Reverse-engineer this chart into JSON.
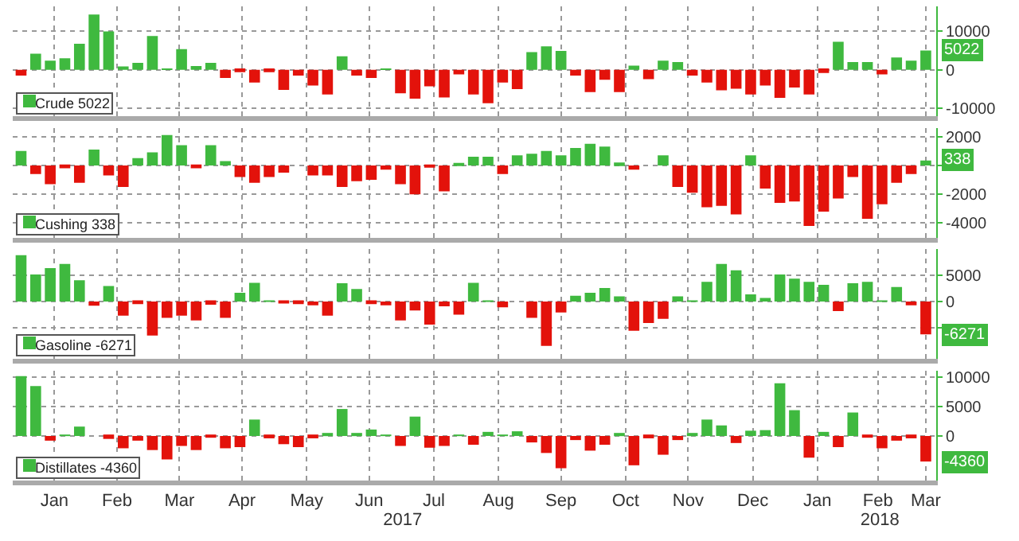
{
  "chart_data": [
    {
      "type": "bar",
      "legend": "bottom left",
      "grid": true,
      "tick_labels": "y",
      "x": [
        "2016-12-30",
        "2017-01-06",
        "2017-01-13",
        "2017-01-20",
        "2017-01-27",
        "2017-02-03",
        "2017-02-10",
        "2017-02-17",
        "2017-02-24",
        "2017-03-03",
        "2017-03-10",
        "2017-03-17",
        "2017-03-24",
        "2017-03-31",
        "2017-04-07",
        "2017-04-14",
        "2017-04-21",
        "2017-04-28",
        "2017-05-05",
        "2017-05-12",
        "2017-05-19",
        "2017-05-26",
        "2017-06-02",
        "2017-06-09",
        "2017-06-16",
        "2017-06-23",
        "2017-06-30",
        "2017-07-07",
        "2017-07-14",
        "2017-07-21",
        "2017-07-28",
        "2017-08-04",
        "2017-08-11",
        "2017-08-18",
        "2017-08-25",
        "2017-09-01",
        "2017-09-08",
        "2017-09-15",
        "2017-09-22",
        "2017-09-29",
        "2017-10-06",
        "2017-10-13",
        "2017-10-20",
        "2017-10-27",
        "2017-11-03",
        "2017-11-10",
        "2017-11-17",
        "2017-11-24",
        "2017-12-01",
        "2017-12-08",
        "2017-12-15",
        "2017-12-22",
        "2017-12-29",
        "2018-01-05",
        "2018-01-12",
        "2018-01-19",
        "2018-01-26",
        "2018-02-02",
        "2018-02-09",
        "2018-02-16",
        "2018-02-23",
        "2018-03-02",
        "2018-03-09"
      ],
      "xlim": [
        "2016-12-26",
        "2018-03-14"
      ],
      "xticks": [
        {
          "value": "2017-01-15",
          "label": null
        },
        {
          "value": "2017-02-14",
          "label": null
        },
        {
          "value": "2017-03-16",
          "label": null
        },
        {
          "value": "2017-04-15",
          "label": null
        },
        {
          "value": "2017-05-16",
          "label": null
        },
        {
          "value": "2017-06-15",
          "label": null
        },
        {
          "value": "2017-07-16",
          "label": null
        },
        {
          "value": "2017-08-16",
          "label": null
        },
        {
          "value": "2017-09-15",
          "label": null
        },
        {
          "value": "2017-10-16",
          "label": null
        },
        {
          "value": "2017-11-15",
          "label": null
        },
        {
          "value": "2017-12-16",
          "label": null
        },
        {
          "value": "2018-01-16",
          "label": null
        },
        {
          "value": "2018-02-14",
          "label": null
        },
        {
          "value": "2018-03-09",
          "label": null
        }
      ],
      "ylim": [
        -12000,
        16500
      ],
      "yticks": [
        -10000,
        0,
        10000
      ],
      "annotations": [
        {
          "text": "5022",
          "x": "2018-03-09",
          "y": 5022
        }
      ],
      "series": [
        {
          "name": "Crude 5022",
          "color": "#3fb93f",
          "values": [
            -1500,
            4200,
            2400,
            3000,
            6800,
            14400,
            10000,
            900,
            1800,
            8800,
            200,
            5400,
            1000,
            1800,
            -2100,
            -600,
            -3300,
            -600,
            -5200,
            -1500,
            -4100,
            -6400,
            3500,
            -1500,
            -2100,
            100,
            -6100,
            -7500,
            -4300,
            -7200,
            -1200,
            -6400,
            -8700,
            -3300,
            -5000,
            4600,
            6100,
            4900,
            -1500,
            -5800,
            -2600,
            -5800,
            1100,
            -2400,
            2400,
            2000,
            -1500,
            -3300,
            -5300,
            -4900,
            -6400,
            -4100,
            -7300,
            -4600,
            -6400,
            -800,
            7300,
            2000,
            2000,
            -1200,
            3200,
            2400,
            5022
          ],
          "colors": [
            "#e3120b",
            "#3fb93f",
            "#3fb93f",
            "#3fb93f",
            "#3fb93f",
            "#3fb93f",
            "#3fb93f",
            "#3fb93f",
            "#3fb93f",
            "#3fb93f",
            "#3fb93f",
            "#3fb93f",
            "#3fb93f",
            "#3fb93f",
            "#e3120b",
            "#e3120b",
            "#e3120b",
            "#e3120b",
            "#e3120b",
            "#e3120b",
            "#e3120b",
            "#e3120b",
            "#3fb93f",
            "#e3120b",
            "#e3120b",
            "#3fb93f",
            "#e3120b",
            "#e3120b",
            "#e3120b",
            "#e3120b",
            "#e3120b",
            "#e3120b",
            "#e3120b",
            "#e3120b",
            "#e3120b",
            "#3fb93f",
            "#3fb93f",
            "#3fb93f",
            "#e3120b",
            "#e3120b",
            "#e3120b",
            "#e3120b",
            "#3fb93f",
            "#e3120b",
            "#3fb93f",
            "#3fb93f",
            "#e3120b",
            "#e3120b",
            "#e3120b",
            "#e3120b",
            "#e3120b",
            "#e3120b",
            "#e3120b",
            "#e3120b",
            "#e3120b",
            "#e3120b",
            "#3fb93f",
            "#3fb93f",
            "#3fb93f",
            "#e3120b",
            "#3fb93f",
            "#3fb93f",
            "#3fb93f"
          ]
        }
      ]
    },
    {
      "type": "bar",
      "legend": "bottom left",
      "grid": true,
      "tick_labels": "y",
      "x": [
        "2016-12-30",
        "2017-01-06",
        "2017-01-13",
        "2017-01-20",
        "2017-01-27",
        "2017-02-03",
        "2017-02-10",
        "2017-02-17",
        "2017-02-24",
        "2017-03-03",
        "2017-03-10",
        "2017-03-17",
        "2017-03-24",
        "2017-03-31",
        "2017-04-07",
        "2017-04-14",
        "2017-04-21",
        "2017-04-28",
        "2017-05-05",
        "2017-05-12",
        "2017-05-19",
        "2017-05-26",
        "2017-06-02",
        "2017-06-09",
        "2017-06-16",
        "2017-06-23",
        "2017-06-30",
        "2017-07-07",
        "2017-07-14",
        "2017-07-21",
        "2017-07-28",
        "2017-08-04",
        "2017-08-11",
        "2017-08-18",
        "2017-08-25",
        "2017-09-01",
        "2017-09-08",
        "2017-09-15",
        "2017-09-22",
        "2017-09-29",
        "2017-10-06",
        "2017-10-13",
        "2017-10-20",
        "2017-10-27",
        "2017-11-03",
        "2017-11-10",
        "2017-11-17",
        "2017-11-24",
        "2017-12-01",
        "2017-12-08",
        "2017-12-15",
        "2017-12-22",
        "2017-12-29",
        "2018-01-05",
        "2018-01-12",
        "2018-01-19",
        "2018-01-26",
        "2018-02-02",
        "2018-02-09",
        "2018-02-16",
        "2018-02-23",
        "2018-03-02",
        "2018-03-09"
      ],
      "xlim": [
        "2016-12-26",
        "2018-03-14"
      ],
      "xticks": [
        {
          "value": "2017-01-15",
          "label": null
        },
        {
          "value": "2017-02-14",
          "label": null
        },
        {
          "value": "2017-03-16",
          "label": null
        },
        {
          "value": "2017-04-15",
          "label": null
        },
        {
          "value": "2017-05-16",
          "label": null
        },
        {
          "value": "2017-06-15",
          "label": null
        },
        {
          "value": "2017-07-16",
          "label": null
        },
        {
          "value": "2017-08-16",
          "label": null
        },
        {
          "value": "2017-09-15",
          "label": null
        },
        {
          "value": "2017-10-16",
          "label": null
        },
        {
          "value": "2017-11-15",
          "label": null
        },
        {
          "value": "2017-12-16",
          "label": null
        },
        {
          "value": "2018-01-16",
          "label": null
        },
        {
          "value": "2018-02-14",
          "label": null
        },
        {
          "value": "2018-03-09",
          "label": null
        }
      ],
      "ylim": [
        -5000,
        2600
      ],
      "yticks": [
        2000,
        {
          "value": 0,
          "label": null
        },
        -2000,
        -4000
      ],
      "annotations": [
        {
          "text": "338",
          "x": "2018-03-09",
          "y": 338
        }
      ],
      "series": [
        {
          "name": "Cushing 338",
          "color": "#3fb93f",
          "values": [
            1000,
            -600,
            -1300,
            -200,
            -1200,
            1100,
            -700,
            -1500,
            500,
            900,
            2100,
            1400,
            -200,
            1400,
            300,
            -800,
            -1200,
            -800,
            -500,
            0,
            -700,
            -700,
            -1500,
            -1100,
            -1000,
            -300,
            -1300,
            -2000,
            -100,
            -1800,
            100,
            600,
            600,
            -600,
            700,
            800,
            1000,
            700,
            1200,
            1500,
            1300,
            200,
            -300,
            0,
            700,
            -1500,
            -1900,
            -2900,
            -2800,
            -3400,
            700,
            -1600,
            -2600,
            -2500,
            -4200,
            -3200,
            -2300,
            -800,
            -3700,
            -2700,
            -1200,
            -600,
            338
          ],
          "colors": [
            "#3fb93f",
            "#e3120b",
            "#e3120b",
            "#e3120b",
            "#e3120b",
            "#3fb93f",
            "#e3120b",
            "#e3120b",
            "#3fb93f",
            "#3fb93f",
            "#3fb93f",
            "#3fb93f",
            "#e3120b",
            "#3fb93f",
            "#3fb93f",
            "#e3120b",
            "#e3120b",
            "#e3120b",
            "#e3120b",
            "#3fb93f",
            "#e3120b",
            "#e3120b",
            "#e3120b",
            "#e3120b",
            "#e3120b",
            "#e3120b",
            "#e3120b",
            "#e3120b",
            "#e3120b",
            "#e3120b",
            "#3fb93f",
            "#3fb93f",
            "#3fb93f",
            "#e3120b",
            "#3fb93f",
            "#3fb93f",
            "#3fb93f",
            "#3fb93f",
            "#3fb93f",
            "#3fb93f",
            "#3fb93f",
            "#3fb93f",
            "#e3120b",
            "#3fb93f",
            "#3fb93f",
            "#e3120b",
            "#e3120b",
            "#e3120b",
            "#e3120b",
            "#e3120b",
            "#3fb93f",
            "#e3120b",
            "#e3120b",
            "#e3120b",
            "#e3120b",
            "#e3120b",
            "#e3120b",
            "#e3120b",
            "#e3120b",
            "#e3120b",
            "#e3120b",
            "#e3120b",
            "#3fb93f"
          ]
        }
      ]
    },
    {
      "type": "bar",
      "legend": "bottom left",
      "grid": true,
      "tick_labels": "y",
      "x": [
        "2016-12-30",
        "2017-01-06",
        "2017-01-13",
        "2017-01-20",
        "2017-01-27",
        "2017-02-03",
        "2017-02-10",
        "2017-02-17",
        "2017-02-24",
        "2017-03-03",
        "2017-03-10",
        "2017-03-17",
        "2017-03-24",
        "2017-03-31",
        "2017-04-07",
        "2017-04-14",
        "2017-04-21",
        "2017-04-28",
        "2017-05-05",
        "2017-05-12",
        "2017-05-19",
        "2017-05-26",
        "2017-06-02",
        "2017-06-09",
        "2017-06-16",
        "2017-06-23",
        "2017-06-30",
        "2017-07-07",
        "2017-07-14",
        "2017-07-21",
        "2017-07-28",
        "2017-08-04",
        "2017-08-11",
        "2017-08-18",
        "2017-08-25",
        "2017-09-01",
        "2017-09-08",
        "2017-09-15",
        "2017-09-22",
        "2017-09-29",
        "2017-10-06",
        "2017-10-13",
        "2017-10-20",
        "2017-10-27",
        "2017-11-03",
        "2017-11-10",
        "2017-11-17",
        "2017-11-24",
        "2017-12-01",
        "2017-12-08",
        "2017-12-15",
        "2017-12-22",
        "2017-12-29",
        "2018-01-05",
        "2018-01-12",
        "2018-01-19",
        "2018-01-26",
        "2018-02-02",
        "2018-02-09",
        "2018-02-16",
        "2018-02-23",
        "2018-03-02",
        "2018-03-09"
      ],
      "xlim": [
        "2016-12-26",
        "2018-03-14"
      ],
      "xticks": [
        {
          "value": "2017-01-15",
          "label": null
        },
        {
          "value": "2017-02-14",
          "label": null
        },
        {
          "value": "2017-03-16",
          "label": null
        },
        {
          "value": "2017-04-15",
          "label": null
        },
        {
          "value": "2017-05-16",
          "label": null
        },
        {
          "value": "2017-06-15",
          "label": null
        },
        {
          "value": "2017-07-16",
          "label": null
        },
        {
          "value": "2017-08-16",
          "label": null
        },
        {
          "value": "2017-09-15",
          "label": null
        },
        {
          "value": "2017-10-16",
          "label": null
        },
        {
          "value": "2017-11-15",
          "label": null
        },
        {
          "value": "2017-12-16",
          "label": null
        },
        {
          "value": "2018-01-16",
          "label": null
        },
        {
          "value": "2018-02-14",
          "label": null
        },
        {
          "value": "2018-03-09",
          "label": null
        }
      ],
      "ylim": [
        -11000,
        10000
      ],
      "yticks": [
        5000,
        0,
        {
          "value": -5000,
          "label": null
        }
      ],
      "annotations": [
        {
          "text": "-6271",
          "x": "2018-03-09",
          "y": -6271
        }
      ],
      "series": [
        {
          "name": "Gasoline -6271",
          "color": "#3fb93f",
          "values": [
            8900,
            5200,
            6400,
            7200,
            4100,
            -800,
            3000,
            -2700,
            -500,
            -6500,
            -3100,
            -2700,
            -3600,
            -600,
            -3100,
            1700,
            3600,
            100,
            -100,
            -500,
            -700,
            -2700,
            3500,
            2400,
            -500,
            -700,
            -3600,
            -1700,
            -4400,
            -900,
            -2500,
            3600,
            100,
            -1100,
            0,
            -3100,
            -8500,
            -2100,
            1100,
            1700,
            2600,
            1000,
            -5600,
            -4100,
            -3300,
            1000,
            100,
            3800,
            7200,
            6000,
            1400,
            700,
            5200,
            4400,
            3800,
            3200,
            -1800,
            3500,
            3800,
            100,
            2800,
            -700,
            -6271
          ],
          "colors": [
            "#3fb93f",
            "#3fb93f",
            "#3fb93f",
            "#3fb93f",
            "#3fb93f",
            "#e3120b",
            "#3fb93f",
            "#e3120b",
            "#e3120b",
            "#e3120b",
            "#e3120b",
            "#e3120b",
            "#e3120b",
            "#e3120b",
            "#e3120b",
            "#3fb93f",
            "#3fb93f",
            "#3fb93f",
            "#e3120b",
            "#e3120b",
            "#e3120b",
            "#e3120b",
            "#3fb93f",
            "#3fb93f",
            "#e3120b",
            "#e3120b",
            "#e3120b",
            "#e3120b",
            "#e3120b",
            "#e3120b",
            "#e3120b",
            "#3fb93f",
            "#3fb93f",
            "#e3120b",
            "#3fb93f",
            "#e3120b",
            "#e3120b",
            "#e3120b",
            "#3fb93f",
            "#3fb93f",
            "#3fb93f",
            "#3fb93f",
            "#e3120b",
            "#e3120b",
            "#e3120b",
            "#3fb93f",
            "#3fb93f",
            "#3fb93f",
            "#3fb93f",
            "#3fb93f",
            "#3fb93f",
            "#3fb93f",
            "#3fb93f",
            "#3fb93f",
            "#3fb93f",
            "#3fb93f",
            "#e3120b",
            "#3fb93f",
            "#3fb93f",
            "#3fb93f",
            "#3fb93f",
            "#e3120b",
            "#e3120b"
          ]
        }
      ]
    },
    {
      "type": "bar",
      "legend": "bottom left",
      "grid": true,
      "x": [
        "2016-12-30",
        "2017-01-06",
        "2017-01-13",
        "2017-01-20",
        "2017-01-27",
        "2017-02-03",
        "2017-02-10",
        "2017-02-17",
        "2017-02-24",
        "2017-03-03",
        "2017-03-10",
        "2017-03-17",
        "2017-03-24",
        "2017-03-31",
        "2017-04-07",
        "2017-04-14",
        "2017-04-21",
        "2017-04-28",
        "2017-05-05",
        "2017-05-12",
        "2017-05-19",
        "2017-05-26",
        "2017-06-02",
        "2017-06-09",
        "2017-06-16",
        "2017-06-23",
        "2017-06-30",
        "2017-07-07",
        "2017-07-14",
        "2017-07-21",
        "2017-07-28",
        "2017-08-04",
        "2017-08-11",
        "2017-08-18",
        "2017-08-25",
        "2017-09-01",
        "2017-09-08",
        "2017-09-15",
        "2017-09-22",
        "2017-09-29",
        "2017-10-06",
        "2017-10-13",
        "2017-10-20",
        "2017-10-27",
        "2017-11-03",
        "2017-11-10",
        "2017-11-17",
        "2017-11-24",
        "2017-12-01",
        "2017-12-08",
        "2017-12-15",
        "2017-12-22",
        "2017-12-29",
        "2018-01-05",
        "2018-01-12",
        "2018-01-19",
        "2018-01-26",
        "2018-02-02",
        "2018-02-09",
        "2018-02-16",
        "2018-02-23",
        "2018-03-02",
        "2018-03-09"
      ],
      "xlim": [
        "2016-12-26",
        "2018-03-14"
      ],
      "xticks": [
        {
          "value": "2017-01-15",
          "label": "Jan"
        },
        {
          "value": "2017-02-14",
          "label": "Feb"
        },
        {
          "value": "2017-03-16",
          "label": "Mar"
        },
        {
          "value": "2017-04-15",
          "label": "Apr"
        },
        {
          "value": "2017-05-16",
          "label": "May"
        },
        {
          "value": "2017-06-15",
          "label": "Jun"
        },
        {
          "value": "2017-07-16",
          "label": "Jul"
        },
        {
          "value": "2017-08-16",
          "label": "Aug"
        },
        {
          "value": "2017-09-15",
          "label": "Sep"
        },
        {
          "value": "2017-10-16",
          "label": "Oct"
        },
        {
          "value": "2017-11-15",
          "label": "Nov"
        },
        {
          "value": "2017-12-16",
          "label": "Dec"
        },
        {
          "value": "2018-01-16",
          "label": "Jan"
        },
        {
          "value": "2018-02-14",
          "label": "Feb"
        },
        {
          "value": "2018-03-09",
          "label": "Mar"
        }
      ],
      "x2lim": [
        "2016-12-26",
        "2018-03-14"
      ],
      "x2ticks": [
        {
          "value": "2017-07-01",
          "label": "2017"
        },
        {
          "value": "2018-02-15",
          "label": "2018"
        }
      ],
      "ylim": [
        -7600,
        11100
      ],
      "yticks": [
        10000,
        5000,
        0
      ],
      "annotations": [
        {
          "text": "-4360",
          "x": "2018-03-09",
          "y": -4360
        }
      ],
      "series": [
        {
          "name": "Distillates -4360",
          "color": "#3fb93f",
          "values": [
            10200,
            8500,
            -800,
            100,
            1600,
            0,
            -500,
            -2100,
            -800,
            -2400,
            -4000,
            -1700,
            -2400,
            -300,
            -2100,
            -1900,
            2800,
            -400,
            -1400,
            -1900,
            -400,
            400,
            4600,
            400,
            1100,
            100,
            -1700,
            3300,
            -2000,
            -1700,
            100,
            -1500,
            700,
            200,
            800,
            -1100,
            -2900,
            -5500,
            -700,
            -2500,
            -1500,
            500,
            -5000,
            -400,
            -3200,
            -700,
            400,
            2800,
            1800,
            -1200,
            900,
            1000,
            9000,
            4400,
            -3700,
            700,
            -1900,
            4000,
            -300,
            -2100,
            -800,
            -400,
            -4360
          ],
          "colors": [
            "#3fb93f",
            "#3fb93f",
            "#e3120b",
            "#3fb93f",
            "#3fb93f",
            "#3fb93f",
            "#e3120b",
            "#e3120b",
            "#e3120b",
            "#e3120b",
            "#e3120b",
            "#e3120b",
            "#e3120b",
            "#e3120b",
            "#e3120b",
            "#e3120b",
            "#3fb93f",
            "#e3120b",
            "#e3120b",
            "#e3120b",
            "#e3120b",
            "#3fb93f",
            "#3fb93f",
            "#3fb93f",
            "#3fb93f",
            "#3fb93f",
            "#e3120b",
            "#3fb93f",
            "#e3120b",
            "#e3120b",
            "#3fb93f",
            "#e3120b",
            "#3fb93f",
            "#3fb93f",
            "#3fb93f",
            "#e3120b",
            "#e3120b",
            "#e3120b",
            "#e3120b",
            "#e3120b",
            "#e3120b",
            "#3fb93f",
            "#e3120b",
            "#e3120b",
            "#e3120b",
            "#e3120b",
            "#3fb93f",
            "#3fb93f",
            "#3fb93f",
            "#e3120b",
            "#3fb93f",
            "#3fb93f",
            "#3fb93f",
            "#3fb93f",
            "#e3120b",
            "#3fb93f",
            "#e3120b",
            "#3fb93f",
            "#e3120b",
            "#e3120b",
            "#e3120b",
            "#e3120b",
            "#e3120b"
          ]
        }
      ]
    }
  ]
}
